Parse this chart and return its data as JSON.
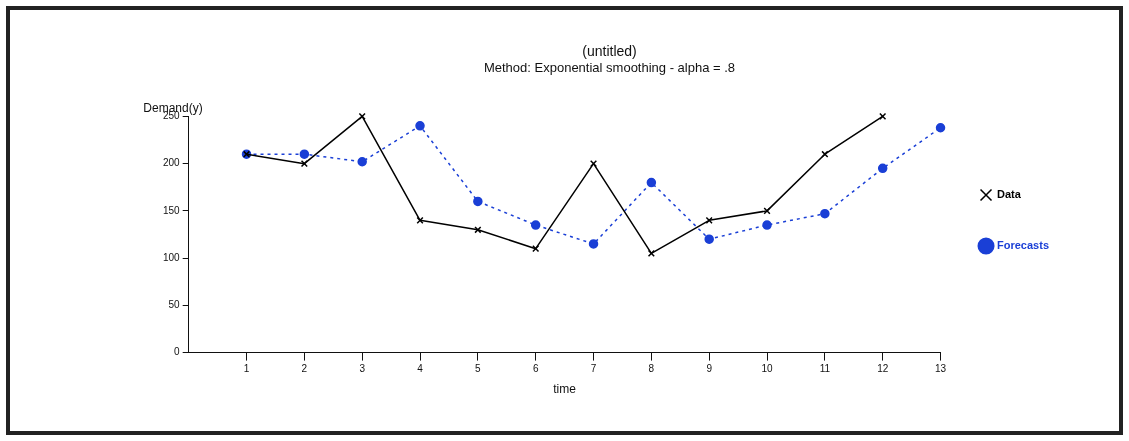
{
  "chart_data": {
    "type": "line",
    "title": "(untitled)",
    "subtitle": "Method: Exponential smoothing - alpha = .8",
    "xlabel": "time",
    "ylabel": "Demand(y)",
    "x": [
      1,
      2,
      3,
      4,
      5,
      6,
      7,
      8,
      9,
      10,
      11,
      12,
      13
    ],
    "series": [
      {
        "name": "Data",
        "color": "#000000",
        "marker": "cross",
        "line_style": "solid",
        "values": [
          210,
          200,
          250,
          140,
          130,
          110,
          200,
          105,
          140,
          150,
          210,
          250,
          null
        ]
      },
      {
        "name": "Forecasts",
        "color": "#1a3fd6",
        "marker": "circle",
        "line_style": "dotted",
        "values": [
          210,
          210,
          202,
          240,
          160,
          135,
          115,
          180,
          120,
          135,
          147,
          195,
          238
        ]
      }
    ],
    "xlim": [
      0,
      13
    ],
    "xticks": [
      1,
      2,
      3,
      4,
      5,
      6,
      7,
      8,
      9,
      10,
      11,
      12,
      13
    ],
    "ylim": [
      0,
      250
    ],
    "yticks": [
      0,
      50,
      100,
      150,
      200,
      250
    ],
    "grid": false,
    "legend": "right"
  }
}
